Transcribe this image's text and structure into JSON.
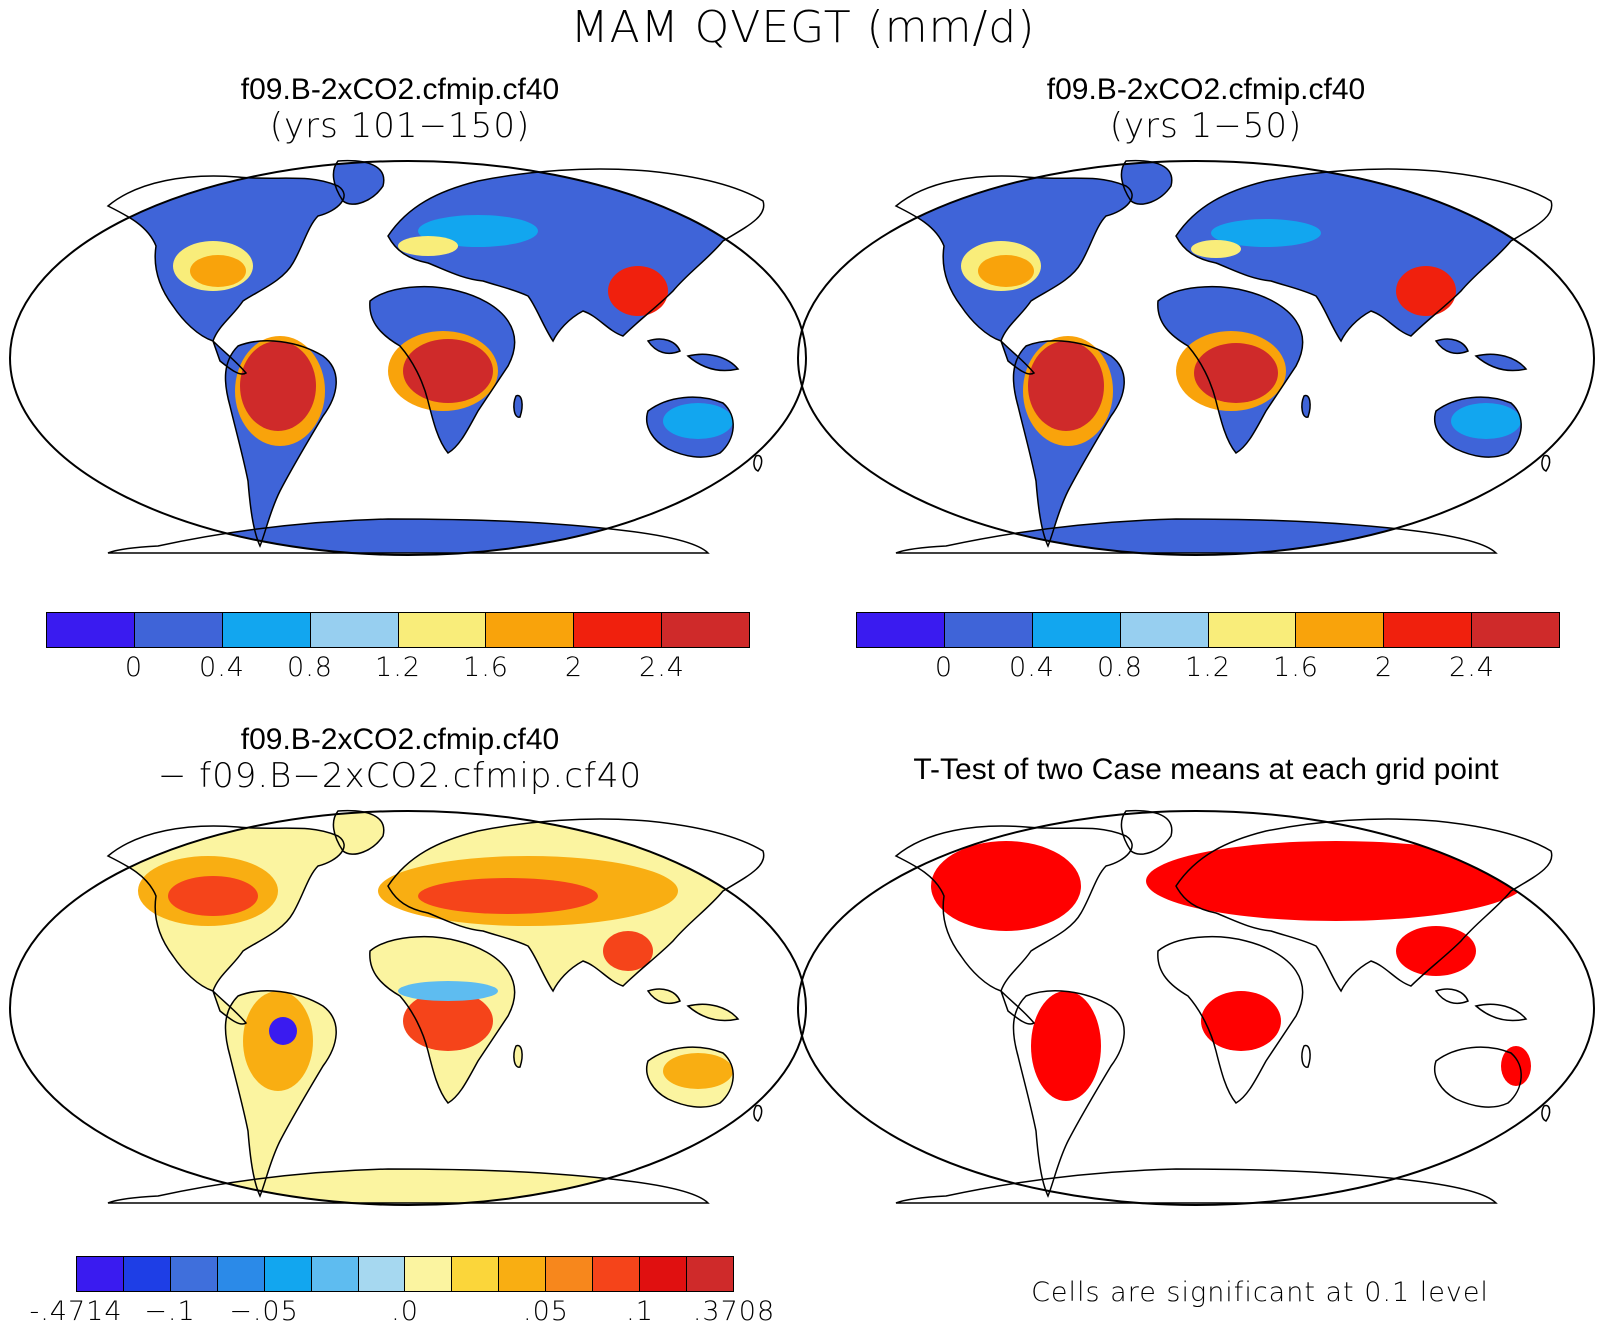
{
  "title": "MAM QVEGT (mm/d)",
  "panels": {
    "top_left": {
      "title": "f09.B-2xCO2.cfmip.cf40",
      "subtitle": "(yrs 101−150)"
    },
    "top_right": {
      "title": "f09.B-2xCO2.cfmip.cf40",
      "subtitle": "(yrs 1−50)"
    },
    "bottom_left": {
      "title": "f09.B-2xCO2.cfmip.cf40",
      "subtitle": "− f09.B−2xCO2.cfmip.cf40"
    },
    "bottom_right": {
      "title": "T-Test of two Case means at each grid point",
      "note": "Cells are significant at 0.1 level"
    }
  },
  "colorbar_main": {
    "colors": [
      "#3a1bf0",
      "#3f64d8",
      "#12a6ef",
      "#97cff0",
      "#f9ed7a",
      "#f9a30b",
      "#f0200d",
      "#cf2a2a"
    ],
    "labels": [
      "0",
      "0.4",
      "0.8",
      "1.2",
      "1.6",
      "2",
      "2.4"
    ]
  },
  "colorbar_diff": {
    "colors": [
      "#3a1bf0",
      "#1e3ee6",
      "#3f6fdc",
      "#2b8ae8",
      "#12a6ef",
      "#5ebcf0",
      "#a6d8f0",
      "#fbf4a0",
      "#fbd63a",
      "#f9ae12",
      "#f7871c",
      "#f5441a",
      "#e01010",
      "#cf2a2a"
    ],
    "labels": [
      "-.4714",
      "−.1",
      "−.05",
      ".0",
      ".05",
      ".1",
      ".3708"
    ]
  },
  "significance_color": "#ff0000"
}
